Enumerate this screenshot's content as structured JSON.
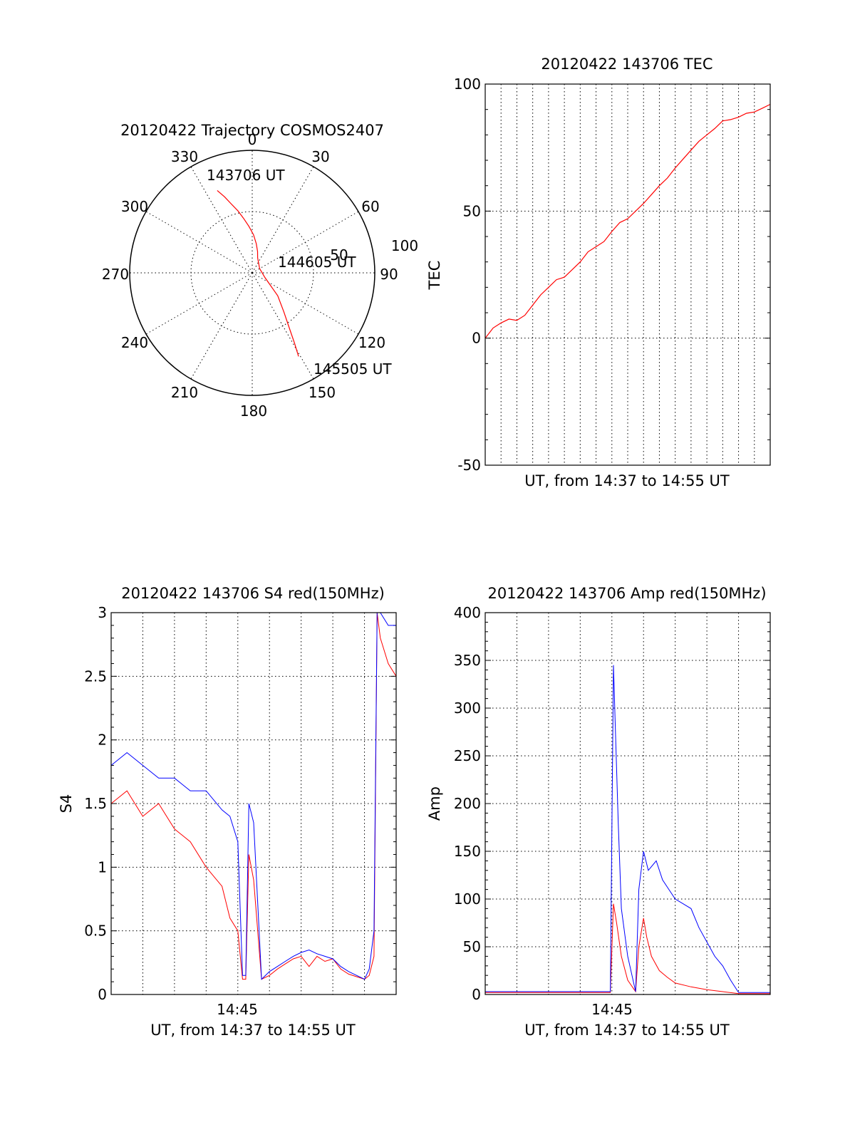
{
  "colors": {
    "red": "#ff0000",
    "blue": "#0000ff",
    "axes": "#000000",
    "background": "#ffffff"
  },
  "chart_data": [
    {
      "type": "polar",
      "title": "20120422 Trajectory COSMOS2407",
      "angle_labels": [
        "0",
        "30",
        "60",
        "90",
        "120",
        "150",
        "180",
        "210",
        "240",
        "270",
        "300",
        "330"
      ],
      "radius_labels": [
        "50",
        "100"
      ],
      "rlim": [
        0,
        100
      ],
      "grid": true,
      "series": [
        {
          "color": "#ff0000",
          "azimuth": [
            337,
            340,
            343,
            347,
            351,
            356,
            2,
            8,
            14,
            20,
            60,
            110,
            132,
            141,
            146,
            149,
            151
          ],
          "radius": [
            73,
            66,
            59,
            52,
            45,
            38,
            31,
            24,
            18,
            13,
            7,
            11,
            28,
            41,
            54,
            67,
            78
          ]
        }
      ],
      "annotations": [
        "143706 UT",
        "144605 UT",
        "145505 UT"
      ]
    },
    {
      "type": "line",
      "title": "20120422 143706 TEC",
      "xlabel": "UT, from 14:37 to 14:55 UT",
      "ylabel": "TEC",
      "ylim": [
        -50,
        100
      ],
      "yticks": [
        "-50",
        "0",
        "50",
        "100"
      ],
      "grid": true,
      "series": [
        {
          "color": "#ff0000",
          "x_min": [
            0,
            0.5,
            1,
            1.5,
            2,
            2.5,
            3,
            3.5,
            4,
            4.5,
            5,
            5.5,
            6,
            6.5,
            7,
            7.5,
            8,
            8.5,
            9,
            9.5,
            10,
            10.5,
            11,
            11.5,
            12,
            12.5,
            13,
            13.5,
            14,
            14.5,
            15,
            15.5,
            16,
            16.5,
            17,
            17.5,
            18
          ],
          "values": [
            0,
            4,
            6,
            7.5,
            7,
            9,
            13,
            17,
            20,
            23,
            24,
            27,
            30,
            34,
            36,
            38,
            42,
            45.5,
            47,
            50,
            53,
            56.5,
            60,
            63,
            67,
            70.5,
            74,
            77.5,
            80,
            82.5,
            85.5,
            86,
            87,
            88.5,
            89,
            90.5,
            92
          ]
        }
      ]
    },
    {
      "type": "line",
      "title": "20120422 143706 S4 red(150MHz)",
      "xlabel": "UT, from 14:37 to 14:55 UT",
      "xticks": [
        "14:45"
      ],
      "ylabel": "S4",
      "ylim": [
        0,
        3
      ],
      "yticks": [
        "0",
        "0.5",
        "1",
        "1.5",
        "2",
        "2.5",
        "3"
      ],
      "grid": true,
      "series": [
        {
          "color": "#ff0000",
          "x_min": [
            0,
            1,
            2,
            3,
            4,
            5,
            6,
            7,
            7.5,
            8,
            8.3,
            8.5,
            8.7,
            9,
            9.5,
            10,
            10.5,
            11,
            11.5,
            12,
            12.5,
            13,
            13.5,
            14,
            14.5,
            15,
            15.5,
            16,
            16.3,
            16.6,
            16.8,
            17,
            17.5,
            18
          ],
          "values": [
            1.5,
            1.6,
            1.4,
            1.5,
            1.3,
            1.2,
            1.0,
            0.85,
            0.6,
            0.5,
            0.12,
            0.12,
            1.1,
            0.9,
            0.12,
            0.15,
            0.2,
            0.24,
            0.28,
            0.3,
            0.22,
            0.3,
            0.26,
            0.28,
            0.2,
            0.16,
            0.14,
            0.12,
            0.15,
            0.3,
            3.0,
            2.8,
            2.6,
            2.5
          ]
        },
        {
          "color": "#0000ff",
          "x_min": [
            0,
            1,
            2,
            3,
            4,
            5,
            6,
            7,
            7.5,
            8,
            8.3,
            8.5,
            8.7,
            9,
            9.5,
            10,
            10.5,
            11,
            11.5,
            12,
            12.5,
            13,
            13.5,
            14,
            14.5,
            15,
            15.5,
            16,
            16.3,
            16.6,
            16.8,
            17,
            17.5,
            18
          ],
          "values": [
            1.8,
            1.9,
            1.8,
            1.7,
            1.7,
            1.6,
            1.6,
            1.45,
            1.4,
            1.2,
            0.15,
            0.15,
            1.5,
            1.35,
            0.12,
            0.18,
            0.22,
            0.26,
            0.3,
            0.33,
            0.35,
            0.32,
            0.3,
            0.28,
            0.22,
            0.18,
            0.15,
            0.12,
            0.2,
            0.5,
            3.0,
            3.0,
            2.9,
            2.9
          ]
        }
      ]
    },
    {
      "type": "line",
      "title": "20120422 143706 Amp red(150MHz)",
      "xlabel": "UT, from 14:37 to 14:55 UT",
      "xticks": [
        "14:45"
      ],
      "ylabel": "Amp",
      "ylim": [
        0,
        400
      ],
      "yticks": [
        "0",
        "50",
        "100",
        "150",
        "200",
        "250",
        "300",
        "350",
        "400"
      ],
      "grid": true,
      "series": [
        {
          "color": "#ff0000",
          "x_min": [
            0,
            2,
            4,
            6,
            7.9,
            8.1,
            8.3,
            8.6,
            9,
            9.5,
            9.7,
            10,
            10.2,
            10.5,
            11,
            11.5,
            12,
            13,
            14,
            15,
            16,
            17,
            18
          ],
          "values": [
            2,
            2,
            2,
            2,
            2,
            95,
            75,
            40,
            15,
            3,
            50,
            80,
            60,
            40,
            25,
            18,
            12,
            8,
            5,
            3,
            1,
            1,
            1
          ]
        },
        {
          "color": "#0000ff",
          "x_min": [
            0,
            2,
            4,
            6,
            7.9,
            8.1,
            8.2,
            8.4,
            8.6,
            9,
            9.5,
            9.7,
            10,
            10.3,
            10.8,
            11.2,
            11.6,
            12,
            12.5,
            13,
            13.5,
            14,
            14.5,
            15,
            15.5,
            16,
            17,
            18
          ],
          "values": [
            3,
            3,
            3,
            3,
            3,
            345,
            290,
            180,
            90,
            40,
            3,
            110,
            150,
            130,
            140,
            120,
            110,
            100,
            95,
            90,
            70,
            55,
            40,
            30,
            15,
            2,
            2,
            2
          ]
        }
      ]
    }
  ]
}
